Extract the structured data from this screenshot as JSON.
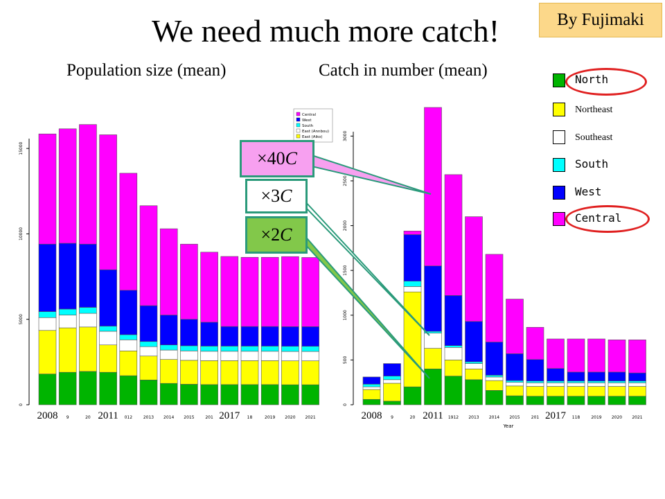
{
  "slide": {
    "title": "We need much more catch!",
    "author_badge": "By Fujimaki"
  },
  "legend": {
    "items": [
      {
        "label": "North",
        "color": "#00b400",
        "mono": true
      },
      {
        "label": "Northeast",
        "color": "#ffff00",
        "mono": false
      },
      {
        "label": "Southeast",
        "color": "#ffffff",
        "mono": false
      },
      {
        "label": "South",
        "color": "#00ffff",
        "mono": true
      },
      {
        "label": "West",
        "color": "#0000ff",
        "mono": true
      },
      {
        "label": "Central",
        "color": "#ff00ff",
        "mono": true
      }
    ]
  },
  "multipliers": [
    {
      "prefix": "×40",
      "suffix": "C",
      "color": "#f7a0f0"
    },
    {
      "prefix": "×3",
      "suffix": "C",
      "color": "#ffffff"
    },
    {
      "prefix": "×2",
      "suffix": "C",
      "color": "#82c84a"
    }
  ],
  "chart_data": [
    {
      "type": "bar",
      "title": "Population size (mean)",
      "stacked": true,
      "ylim": [
        0,
        16000
      ],
      "yticks": [
        0,
        5000,
        10000,
        15000
      ],
      "categories": [
        "2008",
        "9",
        "20",
        "2011",
        "012",
        "2013",
        "2014",
        "2015",
        "201",
        "2017",
        "18",
        "2019",
        "2020",
        "2021"
      ],
      "highlight_labels": [
        "2008",
        "2011",
        "2017"
      ],
      "inner_legend": [
        "Central",
        "West",
        "South",
        "East (Annbou)",
        "East (Aiko)"
      ],
      "series": [
        {
          "name": "North",
          "color": "#00b400",
          "values": [
            1800,
            1900,
            1950,
            1900,
            1700,
            1450,
            1250,
            1200,
            1180,
            1180,
            1180,
            1180,
            1170,
            1170
          ]
        },
        {
          "name": "Northeast",
          "color": "#ffff00",
          "values": [
            2550,
            2600,
            2600,
            1600,
            1450,
            1400,
            1400,
            1400,
            1400,
            1400,
            1400,
            1400,
            1400,
            1400
          ]
        },
        {
          "name": "Southeast",
          "color": "#ffffff",
          "values": [
            750,
            750,
            800,
            800,
            650,
            550,
            550,
            550,
            550,
            550,
            550,
            550,
            550,
            550
          ]
        },
        {
          "name": "South",
          "color": "#00ffff",
          "values": [
            350,
            350,
            350,
            300,
            300,
            300,
            300,
            300,
            300,
            300,
            300,
            300,
            300,
            300
          ]
        },
        {
          "name": "West",
          "color": "#0000ff",
          "values": [
            3950,
            3850,
            3700,
            3300,
            2600,
            2100,
            1750,
            1550,
            1400,
            1150,
            1150,
            1150,
            1150,
            1150
          ]
        },
        {
          "name": "Central",
          "color": "#ff00ff",
          "values": [
            6450,
            6700,
            7000,
            7900,
            6850,
            5850,
            5050,
            4400,
            4100,
            4100,
            4050,
            4050,
            4100,
            4050
          ]
        }
      ]
    },
    {
      "type": "bar",
      "title": "Catch in number (mean)",
      "stacked": true,
      "ylim": [
        0,
        3300
      ],
      "yticks": [
        0,
        500,
        1000,
        1500,
        2000,
        2500,
        3000
      ],
      "xlabel": "Year",
      "categories": [
        "2008",
        "9",
        "20",
        "2011",
        "1912",
        "2013",
        "2014",
        "2015",
        "201",
        "2017",
        "118",
        "2019",
        "2020",
        "2021"
      ],
      "highlight_labels": [
        "2008",
        "2011",
        "2017"
      ],
      "series": [
        {
          "name": "North",
          "color": "#00b400",
          "values": [
            60,
            40,
            200,
            400,
            320,
            280,
            160,
            100,
            95,
            95,
            95,
            95,
            95,
            95
          ]
        },
        {
          "name": "Northeast",
          "color": "#ffff00",
          "values": [
            110,
            200,
            1060,
            230,
            180,
            120,
            110,
            110,
            110,
            110,
            110,
            110,
            110,
            110
          ]
        },
        {
          "name": "Southeast",
          "color": "#ffffff",
          "values": [
            30,
            40,
            60,
            170,
            140,
            60,
            40,
            40,
            40,
            40,
            40,
            40,
            40,
            40
          ]
        },
        {
          "name": "South",
          "color": "#00ffff",
          "values": [
            30,
            40,
            60,
            20,
            20,
            20,
            20,
            20,
            20,
            20,
            20,
            20,
            20,
            20
          ]
        },
        {
          "name": "West",
          "color": "#0000ff",
          "values": [
            80,
            140,
            520,
            730,
            560,
            450,
            370,
            300,
            240,
            140,
            100,
            100,
            100,
            90
          ]
        },
        {
          "name": "Central",
          "color": "#ff00ff",
          "values": [
            0,
            0,
            40,
            1770,
            1350,
            1170,
            980,
            610,
            360,
            330,
            370,
            370,
            360,
            370
          ]
        }
      ]
    }
  ]
}
